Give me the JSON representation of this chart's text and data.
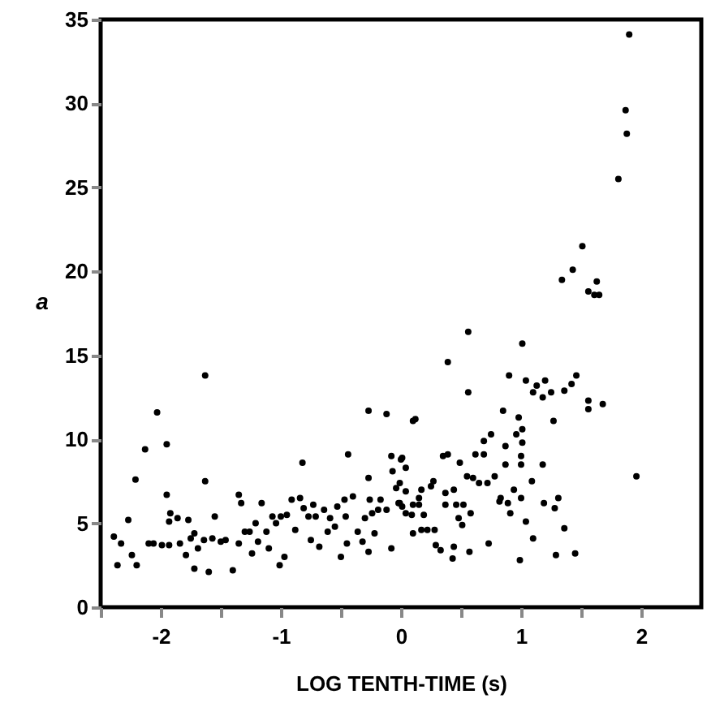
{
  "chart_data": {
    "type": "scatter",
    "xlabel": "LOG TENTH-TIME (s)",
    "ylabel": "a",
    "xlim": [
      -2.5,
      2.5
    ],
    "ylim": [
      0,
      35
    ],
    "xticks": [
      {
        "value": -2.5,
        "label": null
      },
      -2,
      {
        "value": -1.5,
        "label": null
      },
      -1,
      {
        "value": -0.5,
        "label": null
      },
      0,
      {
        "value": 0.5,
        "label": null
      },
      1,
      {
        "value": 1.5,
        "label": null
      },
      2
    ],
    "yticks": [
      0,
      5,
      10,
      15,
      20,
      25,
      30,
      35
    ],
    "grid": false,
    "series": [
      {
        "color": "#000000",
        "x": [
          -2.39,
          -2.33,
          -2.36,
          -2.27,
          -2.24,
          -2.2,
          -2.21,
          -2.13,
          -2.03,
          -2.1,
          -2.06,
          -1.99,
          -1.95,
          -1.95,
          -1.92,
          -1.93,
          -1.86,
          -1.93,
          -1.84,
          -1.79,
          -1.77,
          -1.75,
          -1.72,
          -1.72,
          -1.69,
          -1.63,
          -1.63,
          -1.64,
          -1.6,
          -1.57,
          -1.55,
          -1.5,
          -1.46,
          -1.4,
          -1.35,
          -1.35,
          -1.33,
          -1.3,
          -1.26,
          -1.24,
          -1.21,
          -1.19,
          -1.16,
          -1.12,
          -1.1,
          -1.07,
          -1.04,
          -1.01,
          -0.97,
          -1.0,
          -0.95,
          -0.91,
          -0.88,
          -0.82,
          -0.84,
          -0.81,
          -0.77,
          -0.73,
          -0.75,
          -0.71,
          -0.68,
          -0.64,
          -0.61,
          -0.59,
          -0.55,
          -0.53,
          -0.5,
          -0.47,
          -0.46,
          -0.45,
          -0.44,
          -0.4,
          -0.36,
          -0.32,
          -0.3,
          -0.27,
          -0.27,
          -0.26,
          -0.24,
          -0.27,
          -0.22,
          -0.19,
          -0.17,
          -0.12,
          -0.12,
          -0.08,
          -0.08,
          -0.07,
          -0.04,
          -0.01,
          0.0,
          0.01,
          0.04,
          -0.01,
          0.04,
          -0.02,
          0.01,
          0.04,
          0.09,
          0.1,
          0.1,
          0.1,
          0.12,
          0.15,
          0.15,
          0.17,
          0.17,
          0.19,
          0.22,
          0.25,
          0.27,
          0.28,
          0.29,
          0.33,
          0.35,
          0.39,
          0.37,
          0.37,
          0.39,
          0.43,
          0.44,
          0.44,
          0.46,
          0.48,
          0.49,
          0.51,
          0.52,
          0.55,
          0.56,
          0.56,
          0.57,
          0.58,
          0.6,
          0.62,
          0.65,
          0.69,
          0.69,
          0.72,
          0.73,
          0.75,
          0.78,
          0.82,
          0.83,
          0.85,
          0.87,
          0.87,
          0.89,
          0.9,
          0.91,
          0.94,
          0.96,
          0.98,
          0.99,
          1.0,
          1.0,
          1.0,
          1.01,
          1.01,
          1.01,
          1.04,
          1.04,
          1.09,
          1.1,
          1.1,
          1.13,
          1.18,
          1.18,
          1.19,
          1.2,
          1.25,
          1.27,
          1.28,
          1.29,
          1.31,
          1.36,
          1.36,
          1.42,
          1.45,
          1.46,
          1.56,
          1.56,
          1.68,
          1.96,
          1.9,
          1.87,
          1.88,
          1.81,
          1.51,
          1.43,
          1.34,
          1.63,
          1.56,
          1.61,
          1.65
        ],
        "values": [
          4.2,
          3.8,
          2.5,
          5.2,
          3.1,
          2.5,
          7.6,
          9.4,
          11.6,
          3.8,
          3.8,
          3.7,
          9.7,
          6.7,
          5.6,
          5.1,
          5.3,
          3.7,
          3.8,
          3.1,
          5.2,
          4.1,
          4.4,
          2.3,
          3.5,
          13.8,
          7.5,
          4.0,
          2.1,
          4.1,
          5.4,
          3.9,
          4.0,
          2.2,
          3.8,
          6.7,
          6.2,
          4.5,
          4.5,
          3.2,
          5.0,
          3.9,
          6.2,
          4.5,
          3.5,
          5.4,
          5.0,
          2.5,
          3.0,
          5.4,
          5.5,
          6.4,
          4.6,
          8.6,
          6.5,
          5.9,
          5.4,
          6.1,
          4.0,
          5.4,
          3.6,
          5.8,
          4.5,
          5.3,
          4.8,
          6.0,
          3.0,
          6.4,
          5.4,
          3.8,
          9.1,
          6.6,
          4.5,
          3.9,
          5.3,
          11.7,
          7.7,
          6.4,
          5.6,
          3.3,
          4.4,
          5.8,
          6.4,
          11.5,
          5.8,
          3.5,
          9.0,
          8.1,
          7.1,
          6.2,
          8.8,
          8.9,
          8.3,
          7.4,
          6.9,
          6.2,
          6.0,
          5.6,
          5.5,
          6.1,
          4.4,
          11.1,
          11.2,
          6.5,
          6.1,
          7.0,
          4.6,
          5.5,
          4.6,
          7.2,
          7.5,
          4.6,
          3.7,
          3.4,
          9.0,
          9.1,
          6.8,
          6.1,
          14.6,
          2.9,
          3.6,
          7.0,
          6.1,
          5.3,
          8.6,
          4.9,
          6.1,
          7.8,
          16.4,
          12.8,
          3.3,
          5.6,
          7.7,
          9.1,
          7.4,
          9.1,
          9.9,
          7.4,
          3.8,
          10.3,
          7.8,
          6.3,
          6.5,
          11.7,
          9.6,
          8.5,
          6.2,
          13.8,
          5.6,
          7.0,
          10.3,
          11.3,
          2.8,
          6.5,
          9.0,
          8.5,
          15.7,
          10.6,
          9.8,
          13.5,
          5.1,
          7.5,
          4.1,
          12.8,
          13.2,
          12.5,
          8.5,
          6.2,
          13.5,
          12.8,
          11.1,
          5.9,
          3.1,
          6.5,
          12.9,
          4.7,
          13.3,
          3.2,
          13.8,
          12.3,
          11.8,
          12.1,
          7.8,
          34.1,
          29.6,
          28.2,
          25.5,
          21.5,
          20.1,
          19.5,
          19.4,
          18.8,
          18.6,
          18.6
        ]
      }
    ]
  }
}
